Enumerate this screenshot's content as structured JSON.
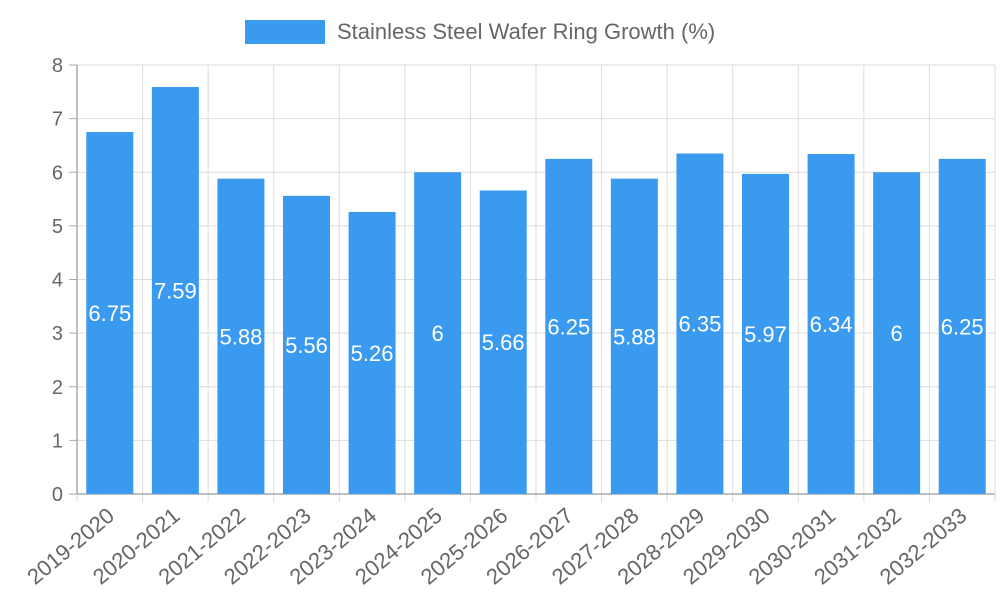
{
  "colors": {
    "bar": "#3a9af0",
    "grid": "#dddddd",
    "axis": "#aaaaaa",
    "text": "#666666",
    "label": "#ffffff"
  },
  "chart_data": {
    "type": "bar",
    "categories": [
      "2019-2020",
      "2020-2021",
      "2021-2022",
      "2022-2023",
      "2023-2024",
      "2024-2025",
      "2025-2026",
      "2026-2027",
      "2027-2028",
      "2028-2029",
      "2029-2030",
      "2030-2031",
      "2031-2032",
      "2032-2033"
    ],
    "series": [
      {
        "name": "Stainless Steel Wafer Ring Growth (%)",
        "values": [
          6.75,
          7.59,
          5.88,
          5.56,
          5.26,
          6,
          5.66,
          6.25,
          5.88,
          6.35,
          5.97,
          6.34,
          6,
          6.25
        ],
        "labels": [
          "6.75",
          "7.59",
          "5.88",
          "5.56",
          "5.26",
          "6",
          "5.66",
          "6.25",
          "5.88",
          "6.35",
          "5.97",
          "6.34",
          "6",
          "6.25"
        ]
      }
    ],
    "ylim": [
      0,
      8
    ],
    "yticks": [
      "0",
      "1",
      "2",
      "3",
      "4",
      "5",
      "6",
      "7",
      "8"
    ],
    "grid": true,
    "legend": "top-center",
    "title": "",
    "xlabel": "",
    "ylabel": ""
  }
}
